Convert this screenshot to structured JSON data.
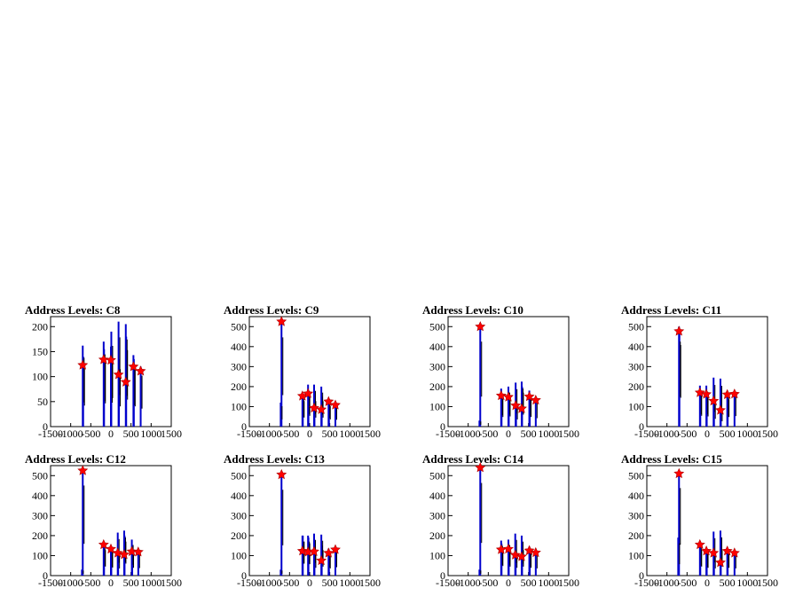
{
  "colors": {
    "histogram": "#0000cc",
    "marker": "#ff0000",
    "axis": "#000000"
  },
  "chart_data": [
    {
      "type": "bar",
      "title": "Address Levels: C8",
      "xlim": [
        -1500,
        1500
      ],
      "ylim": [
        0,
        220
      ],
      "yticks": [
        0,
        50,
        100,
        150,
        200
      ],
      "xticks": [
        -1500,
        -1000,
        -500,
        0,
        500,
        1000,
        1500
      ],
      "peaks_x": [
        -700,
        -180,
        0,
        190,
        370,
        560,
        740
      ],
      "peaks_y": [
        123,
        134,
        133,
        104,
        89,
        120,
        111
      ],
      "spikes": [
        [
          -700,
          162
        ],
        [
          -690,
          140
        ],
        [
          -180,
          170
        ],
        [
          -170,
          155
        ],
        [
          0,
          160
        ],
        [
          10,
          190
        ],
        [
          190,
          210
        ],
        [
          200,
          135
        ],
        [
          370,
          205
        ],
        [
          380,
          180
        ],
        [
          560,
          143
        ],
        [
          570,
          135
        ],
        [
          740,
          120
        ]
      ]
    },
    {
      "type": "bar",
      "title": "Address Levels: C9",
      "xlim": [
        -1500,
        1500
      ],
      "ylim": [
        0,
        550
      ],
      "yticks": [
        0,
        100,
        200,
        300,
        400,
        500
      ],
      "xticks": [
        -1500,
        -1000,
        -500,
        0,
        500,
        1000,
        1500
      ],
      "peaks_x": [
        -700,
        -180,
        -40,
        110,
        290,
        470,
        640
      ],
      "peaks_y": [
        525,
        153,
        165,
        93,
        85,
        125,
        108
      ],
      "spikes": [
        [
          -720,
          120
        ],
        [
          -700,
          525
        ],
        [
          -180,
          160
        ],
        [
          -170,
          150
        ],
        [
          -40,
          210
        ],
        [
          -30,
          180
        ],
        [
          110,
          210
        ],
        [
          120,
          150
        ],
        [
          290,
          200
        ],
        [
          300,
          150
        ],
        [
          470,
          140
        ],
        [
          480,
          120
        ],
        [
          640,
          115
        ]
      ]
    },
    {
      "type": "bar",
      "title": "Address Levels: C10",
      "xlim": [
        -1500,
        1500
      ],
      "ylim": [
        0,
        550
      ],
      "yticks": [
        0,
        100,
        200,
        300,
        400,
        500
      ],
      "xticks": [
        -1500,
        -1000,
        -500,
        0,
        500,
        1000,
        1500
      ],
      "peaks_x": [
        -700,
        -180,
        0,
        180,
        330,
        520,
        680
      ],
      "peaks_y": [
        500,
        155,
        148,
        105,
        90,
        150,
        132
      ],
      "spikes": [
        [
          -720,
          30
        ],
        [
          -700,
          500
        ],
        [
          -180,
          190
        ],
        [
          -170,
          160
        ],
        [
          0,
          200
        ],
        [
          10,
          170
        ],
        [
          180,
          220
        ],
        [
          190,
          120
        ],
        [
          330,
          225
        ],
        [
          340,
          200
        ],
        [
          520,
          180
        ],
        [
          530,
          160
        ],
        [
          680,
          140
        ]
      ]
    },
    {
      "type": "bar",
      "title": "Address Levels: C11",
      "xlim": [
        -1500,
        1500
      ],
      "ylim": [
        0,
        550
      ],
      "yticks": [
        0,
        100,
        200,
        300,
        400,
        500
      ],
      "xticks": [
        -1500,
        -1000,
        -500,
        0,
        500,
        1000,
        1500
      ],
      "peaks_x": [
        -700,
        -180,
        -20,
        160,
        330,
        500,
        680
      ],
      "peaks_y": [
        477,
        170,
        162,
        128,
        82,
        160,
        163
      ],
      "spikes": [
        [
          -700,
          500
        ],
        [
          -690,
          480
        ],
        [
          -180,
          205
        ],
        [
          -170,
          180
        ],
        [
          -20,
          205
        ],
        [
          -10,
          170
        ],
        [
          160,
          245
        ],
        [
          170,
          130
        ],
        [
          330,
          240
        ],
        [
          340,
          90
        ],
        [
          500,
          170
        ],
        [
          510,
          160
        ],
        [
          680,
          175
        ]
      ]
    },
    {
      "type": "bar",
      "title": "Address Levels: C12",
      "xlim": [
        -1500,
        1500
      ],
      "ylim": [
        0,
        550
      ],
      "yticks": [
        0,
        100,
        200,
        300,
        400,
        500
      ],
      "xticks": [
        -1500,
        -1000,
        -500,
        0,
        500,
        1000,
        1500
      ],
      "peaks_x": [
        -700,
        -180,
        0,
        170,
        330,
        520,
        680
      ],
      "peaks_y": [
        525,
        155,
        133,
        113,
        105,
        120,
        118
      ],
      "spikes": [
        [
          -720,
          30
        ],
        [
          -700,
          530
        ],
        [
          -180,
          160
        ],
        [
          -170,
          150
        ],
        [
          0,
          140
        ],
        [
          10,
          135
        ],
        [
          170,
          215
        ],
        [
          180,
          120
        ],
        [
          330,
          225
        ],
        [
          340,
          200
        ],
        [
          520,
          180
        ],
        [
          530,
          130
        ],
        [
          680,
          125
        ]
      ]
    },
    {
      "type": "bar",
      "title": "Address Levels: C13",
      "xlim": [
        -1500,
        1500
      ],
      "ylim": [
        0,
        550
      ],
      "yticks": [
        0,
        100,
        200,
        300,
        400,
        500
      ],
      "xticks": [
        -1500,
        -1000,
        -500,
        0,
        500,
        1000,
        1500
      ],
      "peaks_x": [
        -700,
        -180,
        -40,
        110,
        290,
        470,
        640
      ],
      "peaks_y": [
        505,
        123,
        118,
        120,
        75,
        113,
        130
      ],
      "spikes": [
        [
          -720,
          30
        ],
        [
          -700,
          505
        ],
        [
          -180,
          200
        ],
        [
          -170,
          200
        ],
        [
          -40,
          200
        ],
        [
          -30,
          190
        ],
        [
          110,
          210
        ],
        [
          120,
          130
        ],
        [
          290,
          205
        ],
        [
          300,
          150
        ],
        [
          470,
          135
        ],
        [
          480,
          120
        ],
        [
          640,
          140
        ]
      ]
    },
    {
      "type": "bar",
      "title": "Address Levels: C14",
      "xlim": [
        -1500,
        1500
      ],
      "ylim": [
        0,
        550
      ],
      "yticks": [
        0,
        100,
        200,
        300,
        400,
        500
      ],
      "xticks": [
        -1500,
        -1000,
        -500,
        0,
        500,
        1000,
        1500
      ],
      "peaks_x": [
        -700,
        -180,
        0,
        170,
        330,
        520,
        680
      ],
      "peaks_y": [
        540,
        130,
        133,
        103,
        95,
        125,
        115
      ],
      "spikes": [
        [
          -720,
          30
        ],
        [
          -700,
          545
        ],
        [
          -180,
          175
        ],
        [
          -170,
          160
        ],
        [
          0,
          180
        ],
        [
          10,
          150
        ],
        [
          170,
          210
        ],
        [
          180,
          130
        ],
        [
          330,
          200
        ],
        [
          340,
          150
        ],
        [
          520,
          145
        ],
        [
          530,
          130
        ],
        [
          680,
          120
        ]
      ]
    },
    {
      "type": "bar",
      "title": "Address Levels: C15",
      "xlim": [
        -1500,
        1500
      ],
      "ylim": [
        0,
        550
      ],
      "yticks": [
        0,
        100,
        200,
        300,
        400,
        500
      ],
      "xticks": [
        -1500,
        -1000,
        -500,
        0,
        500,
        1000,
        1500
      ],
      "peaks_x": [
        -700,
        -180,
        -20,
        160,
        330,
        500,
        680
      ],
      "peaks_y": [
        510,
        155,
        123,
        113,
        65,
        123,
        113
      ],
      "spikes": [
        [
          -720,
          190
        ],
        [
          -700,
          515
        ],
        [
          -180,
          165
        ],
        [
          -170,
          150
        ],
        [
          -20,
          140
        ],
        [
          -10,
          130
        ],
        [
          160,
          220
        ],
        [
          170,
          120
        ],
        [
          330,
          225
        ],
        [
          340,
          150
        ],
        [
          500,
          135
        ],
        [
          510,
          130
        ],
        [
          680,
          120
        ]
      ]
    }
  ]
}
